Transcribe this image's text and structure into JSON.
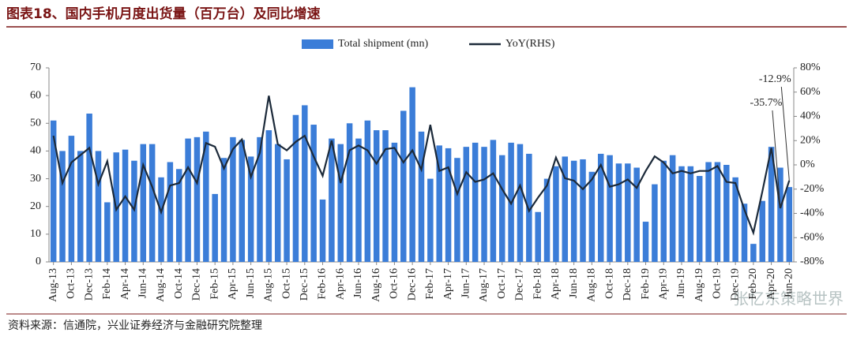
{
  "chart_data": {
    "type": "bar_line",
    "title": "图表18、国内手机月度出货量（百万台）及同比增速",
    "source": "资料来源：信通院，兴业证券经济与金融研究院整理",
    "watermark": "张忆东策略世界",
    "categories": [
      "Aug-13",
      null,
      "Oct-13",
      null,
      "Dec-13",
      null,
      "Feb-14",
      null,
      "Apr-14",
      null,
      "Jun-14",
      null,
      "Aug-14",
      null,
      "Oct-14",
      null,
      "Dec-14",
      null,
      "Feb-15",
      null,
      "Apr-15",
      null,
      "Jun-15",
      null,
      "Aug-15",
      null,
      "Oct-15",
      null,
      "Dec-15",
      null,
      "Feb-16",
      null,
      "Apr-16",
      null,
      "Jun-16",
      null,
      "Aug-16",
      null,
      "Oct-16",
      null,
      "Dec-16",
      null,
      "Feb-17",
      null,
      "Apr-17",
      null,
      "Jun-17",
      null,
      "Aug-17",
      null,
      "Oct-17",
      null,
      "Dec-17",
      null,
      "Feb-18",
      null,
      "Apr-18",
      null,
      "Jun-18",
      null,
      "Aug-18",
      null,
      "Oct-18",
      null,
      "Dec-18",
      null,
      "Feb-19",
      null,
      "Apr-19",
      null,
      "Jun-19",
      null,
      "Aug-19",
      null,
      "Oct-19",
      null,
      "Dec-19",
      null,
      "Feb-20",
      null,
      "Apr-20",
      null,
      "Jun-20"
    ],
    "series": [
      {
        "name": "Total shipment (mn)",
        "type": "bar",
        "color": "#3b7dd8",
        "values": [
          51,
          40,
          45.5,
          40,
          53.5,
          40,
          21.5,
          39.5,
          40.5,
          36.5,
          42.5,
          42.5,
          30.5,
          36,
          33.5,
          44.5,
          45,
          47,
          24.5,
          37.5,
          45,
          44,
          38,
          45,
          47.5,
          42.5,
          37,
          53,
          56.5,
          49.5,
          22.5,
          44.5,
          42.5,
          50,
          44.5,
          51,
          47.5,
          47.5,
          43,
          54.5,
          63,
          47,
          30,
          42,
          41,
          37.5,
          41.5,
          43,
          41.5,
          44,
          38.5,
          43,
          42.5,
          39,
          18,
          30,
          34.5,
          38,
          36.5,
          37,
          32.5,
          39,
          38.5,
          35.5,
          35.5,
          34,
          14.5,
          28,
          36.5,
          38.5,
          34.5,
          34.5,
          31,
          36,
          36,
          35,
          30.5,
          21,
          6.5,
          22,
          41.5,
          34,
          27
        ]
      },
      {
        "name": "YoY(RHS)",
        "type": "line",
        "axis": "y2",
        "color": "#1c2a3a",
        "values": [
          24,
          -15,
          2,
          8,
          14,
          -16,
          3,
          -37,
          -26,
          -37,
          0,
          -18,
          -39,
          -17,
          -15,
          -2,
          -15,
          18,
          15,
          -3,
          13,
          21,
          -10,
          10,
          57,
          17,
          12,
          19,
          24,
          7,
          -9,
          20,
          -15,
          12,
          16,
          12,
          1,
          13,
          14,
          2,
          12,
          -4,
          33,
          -5,
          -2,
          -24,
          -6,
          -14,
          -12,
          -7,
          -20,
          -32,
          -17,
          -38,
          -27,
          -17,
          6,
          -11,
          -13,
          -20,
          -12,
          0,
          -18,
          -16,
          -12,
          -19,
          -5,
          7,
          2,
          -7,
          -5,
          -7,
          -5,
          -5,
          -1,
          -14,
          -15,
          -37,
          -56,
          -22,
          14,
          -35.7,
          -12.9
        ],
        "value_labels": [
          null,
          null,
          null,
          null,
          null,
          null,
          null,
          null,
          null,
          null,
          null,
          null,
          null,
          null,
          null,
          null,
          null,
          null,
          null,
          null,
          null,
          null,
          null,
          null,
          null,
          null,
          null,
          null,
          null,
          null,
          null,
          null,
          null,
          null,
          null,
          null,
          null,
          null,
          null,
          null,
          null,
          null,
          null,
          null,
          null,
          null,
          null,
          null,
          null,
          null,
          null,
          null,
          null,
          null,
          null,
          null,
          null,
          null,
          null,
          null,
          null,
          null,
          null,
          null,
          null,
          null,
          null,
          null,
          null,
          null,
          null,
          null,
          null,
          null,
          null,
          null,
          null,
          null,
          null,
          null,
          null,
          "-35.7%",
          "-12.9%"
        ]
      }
    ],
    "ylim": [
      0,
      70
    ],
    "yticks": [
      0,
      10,
      20,
      30,
      40,
      50,
      60,
      70
    ],
    "y2lim": [
      -80,
      80
    ],
    "y2ticks": [
      {
        "value": -80,
        "label": "-80%"
      },
      {
        "value": -60,
        "label": "-60%"
      },
      {
        "value": -40,
        "label": "-40%"
      },
      {
        "value": -20,
        "label": "-20%"
      },
      {
        "value": 0,
        "label": "0%"
      },
      {
        "value": 20,
        "label": "20%"
      },
      {
        "value": 40,
        "label": "40%"
      },
      {
        "value": 60,
        "label": "60%"
      },
      {
        "value": 80,
        "label": "80%"
      }
    ],
    "grid": false,
    "legend": "top"
  }
}
